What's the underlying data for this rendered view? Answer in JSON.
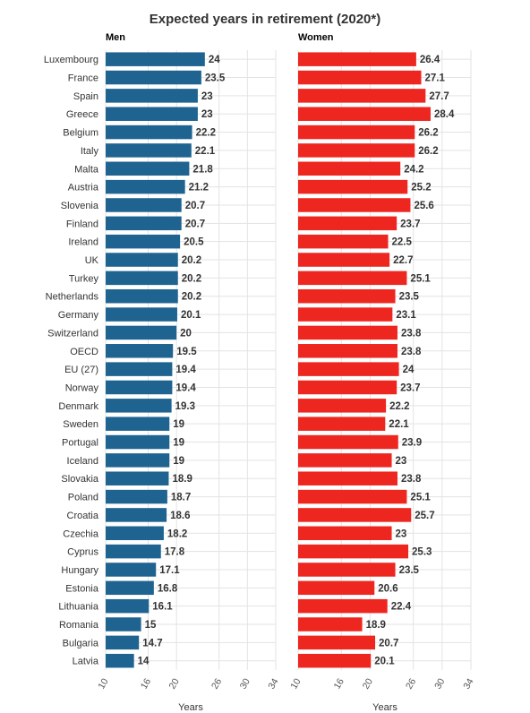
{
  "chart_data": {
    "type": "bar",
    "orientation": "horizontal",
    "title": "Expected years in retirement (2020*)",
    "categories": [
      "Luxembourg",
      "France",
      "Spain",
      "Greece",
      "Belgium",
      "Italy",
      "Malta",
      "Austria",
      "Slovenia",
      "Finland",
      "Ireland",
      "UK",
      "Turkey",
      "Netherlands",
      "Germany",
      "Switzerland",
      "OECD",
      "EU (27)",
      "Norway",
      "Denmark",
      "Sweden",
      "Portugal",
      "Iceland",
      "Slovakia",
      "Poland",
      "Croatia",
      "Czechia",
      "Cyprus",
      "Hungary",
      "Estonia",
      "Lithuania",
      "Romania",
      "Bulgaria",
      "Latvia"
    ],
    "series": [
      {
        "name": "Men",
        "color": "#1f6391",
        "values": [
          24,
          23.5,
          23,
          23,
          22.2,
          22.1,
          21.8,
          21.2,
          20.7,
          20.7,
          20.5,
          20.2,
          20.2,
          20.2,
          20.1,
          20,
          19.5,
          19.4,
          19.4,
          19.3,
          19,
          19,
          19,
          18.9,
          18.7,
          18.6,
          18.2,
          17.8,
          17.1,
          16.8,
          16.1,
          15,
          14.7,
          14
        ]
      },
      {
        "name": "Women",
        "color": "#ee2620",
        "values": [
          26.4,
          27.1,
          27.7,
          28.4,
          26.2,
          26.2,
          24.2,
          25.2,
          25.6,
          23.7,
          22.5,
          22.7,
          25.1,
          23.5,
          23.1,
          23.8,
          23.8,
          24,
          23.7,
          22.2,
          22.1,
          23.9,
          23,
          23.8,
          25.1,
          25.7,
          23,
          25.3,
          23.5,
          20.6,
          22.4,
          18.9,
          20.7,
          20.1
        ]
      }
    ],
    "xlim": [
      10,
      34
    ],
    "xticks": [
      10,
      16,
      20,
      26,
      30,
      34
    ],
    "xlabel": "Years",
    "grid": true
  }
}
